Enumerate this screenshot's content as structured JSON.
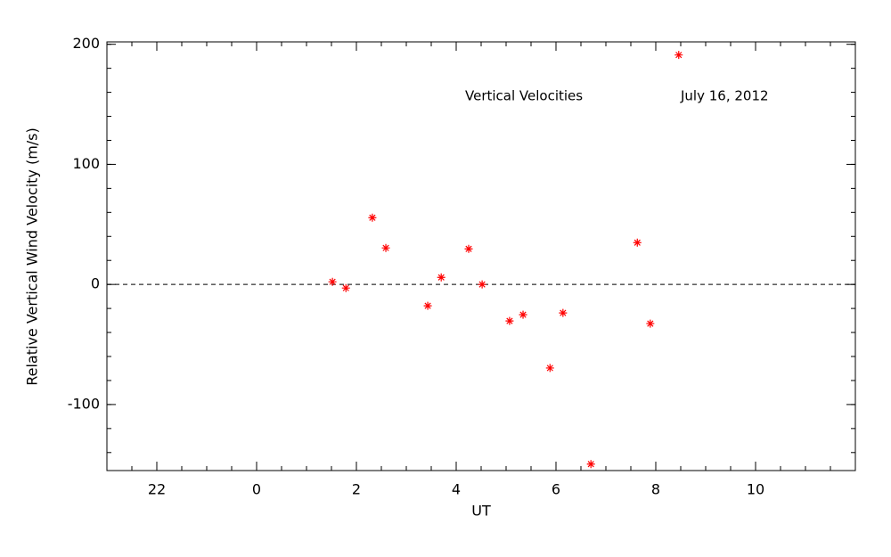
{
  "chart_data": {
    "type": "scatter",
    "annotations": [
      "Vertical Velocities",
      "July 16, 2012"
    ],
    "x_label": "UT",
    "y_label": "Relative Vertical Wind Velocity (m/s)",
    "x": [
      1.52,
      1.79,
      2.32,
      2.59,
      3.43,
      3.7,
      4.25,
      4.52,
      5.07,
      5.34,
      5.88,
      6.14,
      6.7,
      7.63,
      7.89,
      8.46
    ],
    "values": [
      2.2,
      -3,
      55.6,
      30.4,
      -17.8,
      5.9,
      29.6,
      0,
      -30.4,
      -25.2,
      -69.6,
      -23.7,
      -149.6,
      34.8,
      -32.6,
      191.1
    ],
    "color": "#ff0000",
    "xlim": [
      -3,
      12
    ],
    "xticks": [
      {
        "value": -2,
        "label": "22"
      },
      0,
      2,
      4,
      6,
      8,
      10
    ],
    "xminor": 0.5,
    "ylim": [
      -155,
      202
    ],
    "yticks": [
      -100,
      0,
      100,
      200
    ],
    "yminor": 20,
    "reference_line": 0
  }
}
